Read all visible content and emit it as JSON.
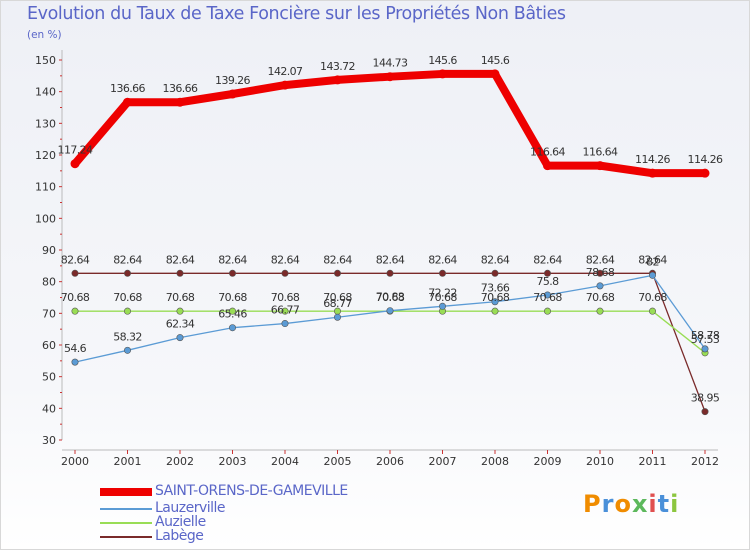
{
  "chart_data": {
    "type": "line",
    "title": "Evolution du Taux de Taxe Foncière sur les Propriétés Non Bâties",
    "subtitle": "(en %)",
    "xlabel": "",
    "ylabel": "",
    "x": [
      "2000",
      "2001",
      "2002",
      "2003",
      "2004",
      "2005",
      "2006",
      "2007",
      "2008",
      "2009",
      "2010",
      "2011",
      "2012"
    ],
    "ylim": [
      30,
      150
    ],
    "yticks": [
      30,
      40,
      50,
      60,
      70,
      80,
      90,
      100,
      110,
      120,
      130,
      140,
      150
    ],
    "grid": false,
    "legend_position": "bottom-left",
    "series": [
      {
        "name": "SAINT-ORENS-DE-GAMEVILLE",
        "color": "#ee0000",
        "values": [
          117.24,
          136.66,
          136.66,
          139.26,
          142.07,
          143.72,
          144.73,
          145.6,
          145.6,
          116.64,
          116.64,
          114.26,
          114.26
        ],
        "labels": [
          "117.24",
          "136.66",
          "136.66",
          "139.26",
          "142.07",
          "143.72",
          "144.73",
          "145.6",
          "145.6",
          "116.64",
          "116.64",
          "114.26",
          "114.26"
        ]
      },
      {
        "name": "Lauzerville",
        "color": "#5b9bd5",
        "values": [
          54.6,
          58.32,
          62.34,
          65.46,
          66.77,
          68.77,
          70.83,
          72.22,
          73.66,
          75.8,
          78.68,
          82,
          58.78
        ],
        "labels": [
          "54.6",
          "58.32",
          "62.34",
          "65.46",
          "66.77",
          "68.77",
          "70.83",
          "72.22",
          "73.66",
          "75.8",
          "78.68",
          "82",
          "58.78"
        ]
      },
      {
        "name": "Auzielle",
        "color": "#99dd55",
        "values": [
          70.68,
          70.68,
          70.68,
          70.68,
          70.68,
          70.68,
          70.68,
          70.68,
          70.68,
          70.68,
          70.68,
          70.68,
          57.53
        ],
        "labels": [
          "70.68",
          "70.68",
          "70.68",
          "70.68",
          "70.68",
          "70.68",
          "70.68",
          "70.68",
          "70.68",
          "70.68",
          "70.68",
          "70.68",
          "57.53"
        ]
      },
      {
        "name": "Labège",
        "color": "#7a2a2a",
        "values": [
          82.64,
          82.64,
          82.64,
          82.64,
          82.64,
          82.64,
          82.64,
          82.64,
          82.64,
          82.64,
          82.64,
          82.64,
          38.95
        ],
        "labels": [
          "82.64",
          "82.64",
          "82.64",
          "82.64",
          "82.64",
          "82.64",
          "82.64",
          "82.64",
          "82.64",
          "82.64",
          "82.64",
          "82.64",
          "38.95"
        ]
      }
    ]
  },
  "logo": {
    "letters": [
      "P",
      "r",
      "o",
      "x",
      "i",
      "t",
      "i"
    ],
    "colors": [
      "#f08c00",
      "#4a90d9",
      "#f08c00",
      "#5cb85c",
      "#e05050",
      "#4a90d9",
      "#8cc63f"
    ]
  }
}
